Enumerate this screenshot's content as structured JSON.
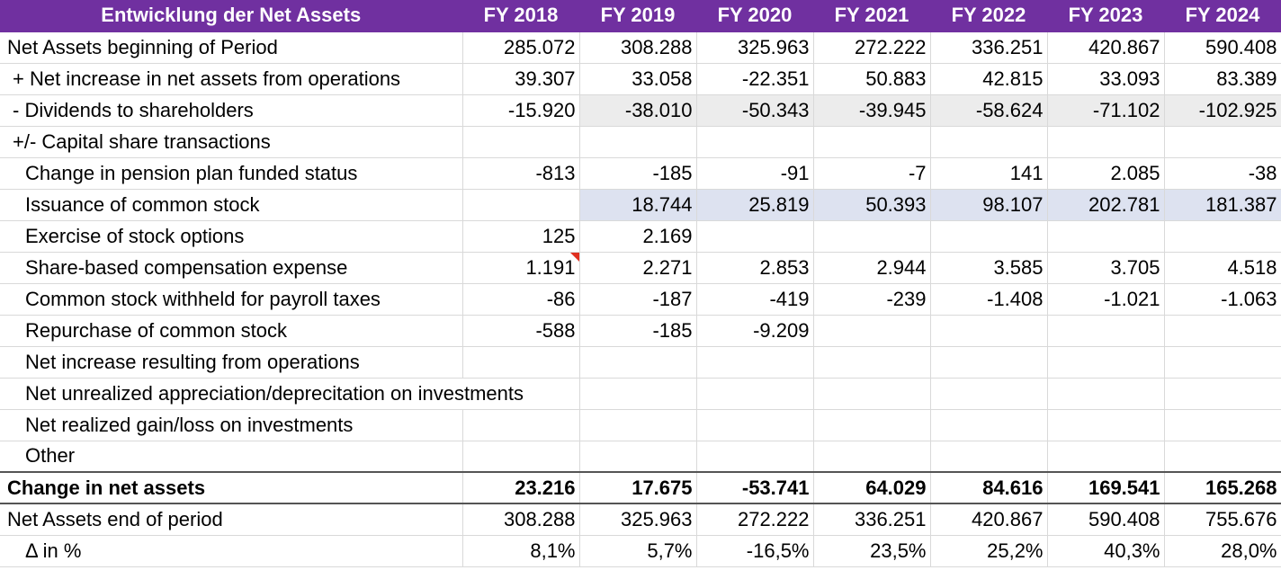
{
  "header": {
    "title": "Entwicklung der Net Assets",
    "years": [
      "FY 2018",
      "FY 2019",
      "FY 2020",
      "FY 2021",
      "FY 2022",
      "FY 2023",
      "FY 2024"
    ]
  },
  "rows": [
    {
      "label": "Net Assets beginning of Period",
      "values": [
        "285.072",
        "308.288",
        "325.963",
        "272.222",
        "336.251",
        "420.867",
        "590.408"
      ]
    },
    {
      "label": "+ Net increase in net assets from operations",
      "values": [
        "39.307",
        "33.058",
        "-22.351",
        "50.883",
        "42.815",
        "33.093",
        "83.389"
      ]
    },
    {
      "label": "- Dividends to shareholders",
      "values": [
        "-15.920",
        "-38.010",
        "-50.343",
        "-39.945",
        "-58.624",
        "-71.102",
        "-102.925"
      ]
    },
    {
      "label": "+/- Capital share transactions",
      "values": [
        "",
        "",
        "",
        "",
        "",
        "",
        ""
      ]
    },
    {
      "label": "Change in pension plan funded status",
      "values": [
        "-813",
        "-185",
        "-91",
        "-7",
        "141",
        "2.085",
        "-38"
      ]
    },
    {
      "label": "Issuance of common stock",
      "values": [
        "",
        "18.744",
        "25.819",
        "50.393",
        "98.107",
        "202.781",
        "181.387"
      ]
    },
    {
      "label": "Exercise of stock options",
      "values": [
        "125",
        "2.169",
        "",
        "",
        "",
        "",
        ""
      ]
    },
    {
      "label": "Share-based compensation expense",
      "values": [
        "1.191",
        "2.271",
        "2.853",
        "2.944",
        "3.585",
        "3.705",
        "4.518"
      ]
    },
    {
      "label": "Common stock withheld for payroll taxes",
      "values": [
        "-86",
        "-187",
        "-419",
        "-239",
        "-1.408",
        "-1.021",
        "-1.063"
      ]
    },
    {
      "label": "Repurchase of common stock",
      "values": [
        "-588",
        "-185",
        "-9.209",
        "",
        "",
        "",
        ""
      ]
    },
    {
      "label": "Net increase resulting from operations",
      "values": [
        "",
        "",
        "",
        "",
        "",
        "",
        ""
      ]
    },
    {
      "label": "Net unrealized appreciation/deprecitation on investments",
      "values": [
        "",
        "",
        "",
        "",
        "",
        "",
        ""
      ]
    },
    {
      "label": "Net realized gain/loss on investments",
      "values": [
        "",
        "",
        "",
        "",
        "",
        "",
        ""
      ]
    },
    {
      "label": "Other",
      "values": [
        "",
        "",
        "",
        "",
        "",
        "",
        ""
      ]
    },
    {
      "label": "Change in net assets",
      "values": [
        "23.216",
        "17.675",
        "-53.741",
        "64.029",
        "84.616",
        "169.541",
        "165.268"
      ]
    },
    {
      "label": "Net Assets end of period",
      "values": [
        "308.288",
        "325.963",
        "272.222",
        "336.251",
        "420.867",
        "590.408",
        "755.676"
      ]
    },
    {
      "label": "Δ in %",
      "values": [
        "8,1%",
        "5,7%",
        "-16,5%",
        "23,5%",
        "25,2%",
        "40,3%",
        "28,0%"
      ]
    }
  ],
  "colors": {
    "header_bg": "#7030a0",
    "header_text": "#ffffff",
    "gray_fill": "#ececec",
    "blue_fill": "#dde2f0",
    "comment_marker": "#e03020"
  }
}
